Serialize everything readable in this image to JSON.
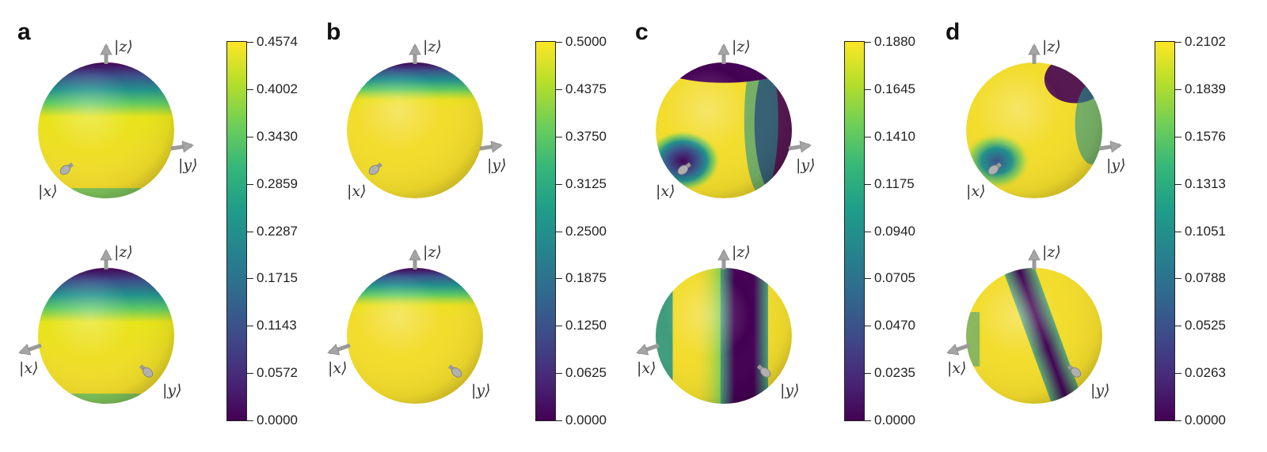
{
  "panels": [
    {
      "label": "a",
      "colorbar_ticks": [
        "0.0000",
        "0.0572",
        "0.1143",
        "0.1715",
        "0.2287",
        "0.2859",
        "0.3430",
        "0.4002",
        "0.4574"
      ],
      "spheres": [
        "top-cap-dark",
        "top-cap-dark"
      ]
    },
    {
      "label": "b",
      "colorbar_ticks": [
        "0.0000",
        "0.0625",
        "0.1250",
        "0.1875",
        "0.2500",
        "0.3125",
        "0.3750",
        "0.4375",
        "0.5000"
      ],
      "spheres": [
        "top-cap-small",
        "top-cap-small"
      ]
    },
    {
      "label": "c",
      "colorbar_ticks": [
        "0.0000",
        "0.0235",
        "0.0470",
        "0.0705",
        "0.0940",
        "0.1175",
        "0.1410",
        "0.1645",
        "0.1880"
      ],
      "spheres": [
        "bands-x-hole",
        "vertical-bands"
      ]
    },
    {
      "label": "d",
      "colorbar_ticks": [
        "0.0000",
        "0.0263",
        "0.0525",
        "0.0788",
        "0.1051",
        "0.1313",
        "0.1576",
        "0.1839",
        "0.2102"
      ],
      "spheres": [
        "partial-bands-x-hole",
        "diagonal-band"
      ]
    }
  ],
  "axis_labels": {
    "z": "|z⟩",
    "x": "|x⟩",
    "y": "|y⟩"
  },
  "colormap": {
    "name": "viridis",
    "low": "#440154",
    "mid": "#21918c",
    "high": "#fde725"
  }
}
